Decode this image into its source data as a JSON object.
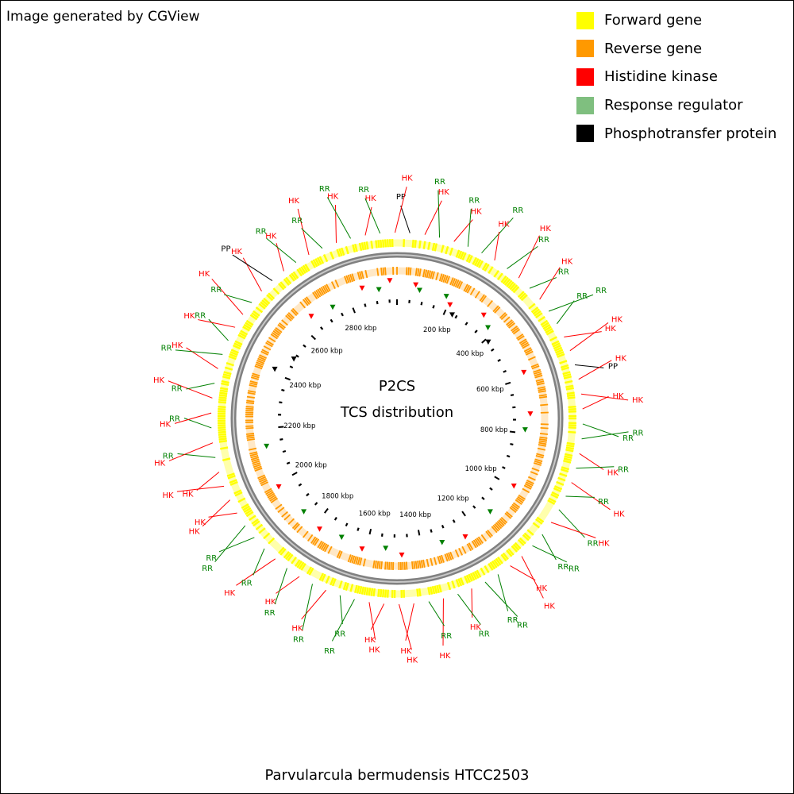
{
  "header": {
    "credit": "Image generated by CGView"
  },
  "legend": {
    "items": [
      {
        "label": "Forward gene",
        "color": "#ffff00"
      },
      {
        "label": "Reverse gene",
        "color": "#ff9900"
      },
      {
        "label": "Histidine kinase",
        "color": "#ff0000"
      },
      {
        "label": "Response regulator",
        "color": "#7fbf7f"
      },
      {
        "label": "Phosphotransfer protein",
        "color": "#000000"
      }
    ]
  },
  "map": {
    "center_title": "P2CS",
    "center_subtitle": "TCS distribution",
    "genome_length_kbp": 2980,
    "tick_labels": [
      "200 kbp",
      "400 kbp",
      "600 kbp",
      "800 kbp",
      "1000 kbp",
      "1200 kbp",
      "1400 kbp",
      "1600 kbp",
      "1800 kbp",
      "2000 kbp",
      "2200 kbp",
      "2400 kbp",
      "2600 kbp",
      "2800 kbp"
    ],
    "colors": {
      "forward": "#ffff00",
      "reverse": "#ff9900",
      "hk": "#ff0000",
      "rr": "#008000",
      "pp": "#000000",
      "backbone": "#808080"
    },
    "feature_labels": [
      "PP",
      "HK",
      "RR",
      "HK",
      "RR",
      "RR",
      "HK",
      "RR",
      "HK",
      "RR",
      "HK",
      "RR",
      "RR",
      "HK",
      "HK",
      "PP",
      "HK",
      "HK",
      "HK",
      "RR",
      "RR",
      "HK",
      "RR",
      "HK",
      "RR",
      "RR",
      "HK",
      "RR",
      "RR",
      "HK",
      "HK",
      "RR",
      "RR",
      "HK",
      "RR",
      "HK",
      "RR",
      "HK",
      "HK",
      "HK",
      "HK",
      "RR",
      "RR",
      "HK",
      "RR",
      "HK",
      "RR",
      "HK",
      "RR",
      "RR",
      "RR",
      "HK",
      "HK",
      "HK",
      "HK",
      "RR",
      "HK",
      "RR",
      "HK",
      "HK",
      "RR",
      "HK",
      "RR",
      "RR",
      "HK",
      "HK",
      "RR",
      "HK",
      "PP",
      "HK",
      "RR",
      "HK",
      "RR",
      "HK",
      "RR",
      "HK",
      "RR",
      "HK"
    ]
  },
  "footer": {
    "organism": "Parvularcula bermudensis HTCC2503"
  }
}
